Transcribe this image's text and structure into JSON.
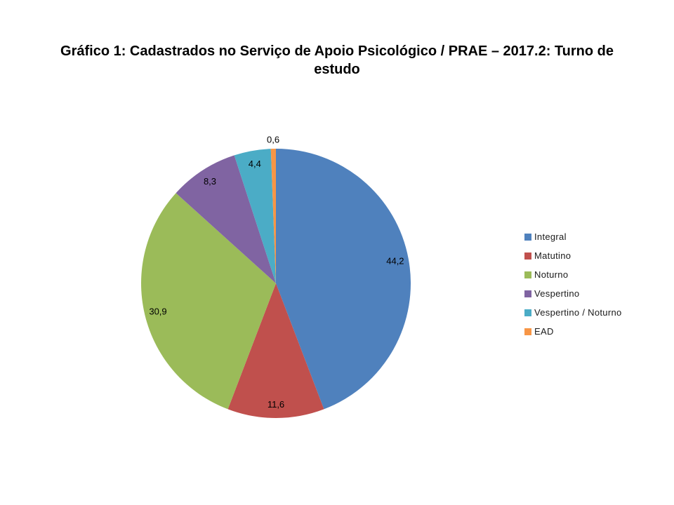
{
  "title": {
    "text": "Gráfico 1: Cadastrados no Serviço de Apoio Psicológico / PRAE – 2017.2: Turno de estudo",
    "lines": [
      "Gráfico 1: Cadastrados no Serviço de Apoio Psicológico / PRAE – 2017.2: Turno de",
      "estudo"
    ]
  },
  "chart_data": {
    "type": "pie",
    "title": "Gráfico 1: Cadastrados no Serviço de Apoio Psicológico / PRAE – 2017.2: Turno de estudo",
    "categories": [
      "Integral",
      "Matutino",
      "Noturno",
      "Vespertino",
      "Vespertino / Noturno",
      "EAD"
    ],
    "values": [
      44.2,
      11.6,
      30.9,
      8.3,
      4.4,
      0.6
    ],
    "value_labels": [
      "44,2",
      "11,6",
      "30,9",
      "8,3",
      "4,4",
      "0,6"
    ],
    "colors": [
      "#4F81BD",
      "#C0504D",
      "#9BBB59",
      "#8064A2",
      "#4BACC6",
      "#F79646"
    ],
    "start_angle_deg": 0,
    "direction": "clockwise",
    "legend_position": "right",
    "label_color": "#000000",
    "background": "#ffffff",
    "decimal_separator": ","
  }
}
